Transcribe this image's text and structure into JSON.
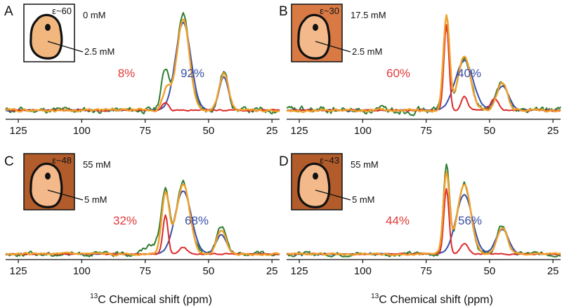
{
  "figure": {
    "axis_title": "C Chemical shift (ppm)",
    "axis_title_superscript": "13"
  },
  "colors": {
    "green": "#2e7d32",
    "orange": "#f0a02a",
    "red": "#dd2b2b",
    "blue": "#3a4fa8",
    "pct_left": "#e03a3a",
    "pct_right": "#3a4fa8"
  },
  "chart_data": [
    {
      "panel": "A",
      "type": "line",
      "inset": {
        "epsilon": "ε~60",
        "conc_top": "0 mM",
        "conc_bottom": "2.5 mM",
        "bg": "#ffffff",
        "cell": "#f2b77f"
      },
      "pct_left": "8%",
      "pct_right": "92%",
      "xlabel": "",
      "xlim": [
        130,
        22
      ],
      "ylim": [
        -0.05,
        1.05
      ],
      "xticks": [
        125,
        100,
        75,
        50,
        25
      ],
      "baseline": 0.03,
      "peaks": {
        "green": [
          [
            67,
            0.42,
            1.6
          ],
          [
            60,
            1.0,
            2.5
          ],
          [
            44,
            0.4,
            1.8
          ]
        ],
        "orange": [
          [
            60,
            0.95,
            2.5
          ],
          [
            66.5,
            0.22,
            1.5
          ],
          [
            44,
            0.38,
            1.8
          ]
        ],
        "red": [
          [
            67,
            0.08,
            1.2
          ]
        ],
        "blue": [
          [
            60,
            0.92,
            3.0
          ],
          [
            44,
            0.35,
            1.8
          ]
        ]
      },
      "noise": 0.06,
      "show_axis_title": false
    },
    {
      "panel": "B",
      "type": "line",
      "inset": {
        "epsilon": "ε~30",
        "conc_top": "17.5 mM",
        "conc_bottom": "2.5 mM",
        "bg": "#d97a45",
        "cell": "#f3b98a"
      },
      "pct_left": "60%",
      "pct_right": "40%",
      "xlabel": "",
      "xlim": [
        130,
        22
      ],
      "ylim": [
        -0.05,
        1.05
      ],
      "xticks": [
        125,
        100,
        75,
        50,
        25
      ],
      "baseline": 0.03,
      "peaks": {
        "green": [
          [
            67,
            1.0,
            1.2
          ],
          [
            60,
            0.55,
            2.5
          ],
          [
            45,
            0.32,
            2.0
          ]
        ],
        "orange": [
          [
            67,
            0.98,
            1.2
          ],
          [
            60,
            0.55,
            2.5
          ],
          [
            45,
            0.3,
            2.0
          ]
        ],
        "red": [
          [
            67,
            0.9,
            1.0
          ],
          [
            60,
            0.15,
            1.2
          ],
          [
            48,
            0.12,
            1.5
          ]
        ],
        "blue": [
          [
            60,
            0.52,
            3.5
          ],
          [
            45,
            0.25,
            2.5
          ]
        ]
      },
      "noise": 0.07,
      "show_axis_title": false
    },
    {
      "panel": "C",
      "type": "line",
      "inset": {
        "epsilon": "ε~48",
        "conc_top": "55 mM",
        "conc_bottom": "5 mM",
        "bg": "#b35c2b",
        "cell": "#f3b98a"
      },
      "pct_left": "32%",
      "pct_right": "68%",
      "xlabel": "13C Chemical shift (ppm)",
      "xlim": [
        130,
        22
      ],
      "ylim": [
        -0.05,
        1.05
      ],
      "xticks": [
        125,
        100,
        75,
        50,
        25
      ],
      "baseline": 0.03,
      "peaks": {
        "green": [
          [
            67,
            0.7,
            1.6
          ],
          [
            60,
            0.82,
            2.6
          ],
          [
            45,
            0.32,
            1.8
          ],
          [
            72,
            0.12,
            3.0
          ]
        ],
        "orange": [
          [
            67,
            0.7,
            1.5
          ],
          [
            60,
            0.8,
            2.6
          ],
          [
            45,
            0.28,
            1.8
          ]
        ],
        "red": [
          [
            67,
            0.45,
            1.0
          ],
          [
            60,
            0.08,
            1.5
          ]
        ],
        "blue": [
          [
            60,
            0.72,
            3.2
          ],
          [
            45,
            0.22,
            2.0
          ]
        ]
      },
      "noise": 0.05,
      "show_axis_title": true
    },
    {
      "panel": "D",
      "type": "line",
      "inset": {
        "epsilon": "ε~43",
        "conc_top": "55 mM",
        "conc_bottom": "5 mM",
        "bg": "#b35c2b",
        "cell": "#f3b98a"
      },
      "pct_left": "44%",
      "pct_right": "56%",
      "xlabel": "13C Chemical shift (ppm)",
      "xlim": [
        130,
        22
      ],
      "ylim": [
        -0.05,
        1.05
      ],
      "xticks": [
        125,
        100,
        75,
        50,
        25
      ],
      "baseline": 0.03,
      "peaks": {
        "green": [
          [
            67,
            1.0,
            1.2
          ],
          [
            60,
            0.82,
            2.6
          ],
          [
            45,
            0.32,
            2.0
          ]
        ],
        "orange": [
          [
            67,
            0.92,
            1.2
          ],
          [
            60,
            0.8,
            2.6
          ],
          [
            45,
            0.3,
            2.0
          ]
        ],
        "red": [
          [
            67,
            0.75,
            1.0
          ],
          [
            60,
            0.12,
            1.5
          ]
        ],
        "blue": [
          [
            60,
            0.68,
            3.2
          ],
          [
            45,
            0.28,
            2.5
          ]
        ]
      },
      "noise": 0.05,
      "show_axis_title": true
    }
  ]
}
